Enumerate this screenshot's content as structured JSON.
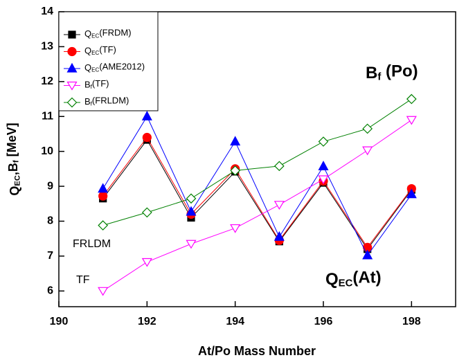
{
  "chart_data": {
    "type": "line",
    "x_label": "At/Po Mass Number",
    "y_label": "QEC,Bf [MeV]",
    "x": [
      191,
      192,
      193,
      194,
      195,
      196,
      197,
      198
    ],
    "series": [
      {
        "name": "QEC(FRDM)",
        "color": "#000000",
        "marker": "square",
        "filled": true,
        "values": [
          8.65,
          10.33,
          8.1,
          9.42,
          7.42,
          9.1,
          7.2,
          8.9
        ]
      },
      {
        "name": "QEC(TF)",
        "color": "#ff0000",
        "marker": "circle",
        "filled": true,
        "values": [
          8.72,
          10.4,
          8.2,
          9.5,
          7.45,
          9.15,
          7.25,
          8.93
        ]
      },
      {
        "name": "QEC(AME2012)",
        "color": "#0000ff",
        "marker": "triangle-up",
        "filled": true,
        "values": [
          8.93,
          11.0,
          8.27,
          10.28,
          7.55,
          9.57,
          7.02,
          8.77
        ]
      },
      {
        "name": "Bf(TF)",
        "color": "#ff00ff",
        "marker": "triangle-down",
        "filled": false,
        "values": [
          6.0,
          6.83,
          7.35,
          7.8,
          8.47,
          9.2,
          10.03,
          10.9
        ]
      },
      {
        "name": "Bf(FRLDM)",
        "color": "#008000",
        "marker": "diamond",
        "filled": false,
        "values": [
          7.88,
          8.25,
          8.65,
          9.45,
          9.58,
          10.28,
          10.65,
          11.5
        ]
      }
    ],
    "annotations": [
      "Bf (Po)",
      "QEC(At)",
      "FRLDM",
      "TF"
    ],
    "xlim": [
      190,
      199
    ],
    "xticks": [
      190,
      192,
      194,
      196,
      198
    ],
    "ylim": [
      5.55,
      14
    ],
    "yticks": [
      6,
      7,
      8,
      9,
      10,
      11,
      12,
      13,
      14
    ]
  }
}
